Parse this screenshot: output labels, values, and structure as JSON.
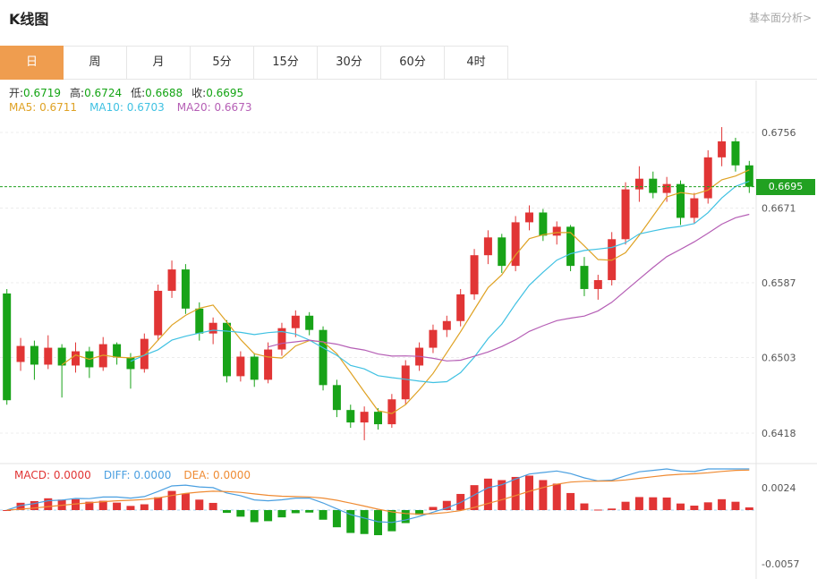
{
  "header": {
    "title": "K线图",
    "link": "基本面分析>"
  },
  "tabs": [
    {
      "label": "日"
    },
    {
      "label": "周"
    },
    {
      "label": "月"
    },
    {
      "label": "5分"
    },
    {
      "label": "15分"
    },
    {
      "label": "30分"
    },
    {
      "label": "60分"
    },
    {
      "label": "4时"
    }
  ],
  "ohlc": {
    "open_label": "开:",
    "open_value": "0.6719",
    "high_label": "高:",
    "high_value": "0.6724",
    "low_label": "低:",
    "low_value": "0.6688",
    "close_label": "收:",
    "close_value": "0.6695"
  },
  "ma": {
    "ma5_label": "MA5: ",
    "ma5_value": "0.6711",
    "ma10_label": "MA10: ",
    "ma10_value": "0.6703",
    "ma20_label": "MA20: ",
    "ma20_value": "0.6673"
  },
  "macd": {
    "macd_label": "MACD: ",
    "macd_value": "0.0000",
    "diff_label": "DIFF: ",
    "diff_value": "0.0000",
    "dea_label": "DEA: ",
    "dea_value": "0.0000"
  },
  "price_badge": "0.6695",
  "colors": {
    "up": "#e13535",
    "down": "#18a318",
    "current": "#21a121",
    "ma5": "#dfa224",
    "ma10": "#3fc1e2",
    "ma20": "#b55eb5",
    "diff": "#4a9fe0",
    "dea": "#ef8b33",
    "tab_active": "#ef9d4f"
  },
  "chart_data": {
    "type": "candlestick",
    "title": "K线图",
    "interval_selected": "日",
    "y_ticks": [
      0.6756,
      0.6671,
      0.6587,
      0.6503,
      0.6418
    ],
    "macd_ticks": [
      0.0024,
      -0.0057
    ],
    "current_price": 0.6695,
    "last_candle": {
      "open": 0.6719,
      "high": 0.6724,
      "low": 0.6688,
      "close": 0.6695
    },
    "overlays": [
      {
        "name": "MA5",
        "period": 5,
        "value": 0.6711
      },
      {
        "name": "MA10",
        "period": 10,
        "value": 0.6703
      },
      {
        "name": "MA20",
        "period": 20,
        "value": 0.6673
      }
    ],
    "indicator": "MACD",
    "candles": [
      [
        0.6575,
        0.658,
        0.645,
        0.6455
      ],
      [
        0.6498,
        0.6525,
        0.6488,
        0.6516
      ],
      [
        0.6516,
        0.6522,
        0.6478,
        0.6495
      ],
      [
        0.6495,
        0.6528,
        0.649,
        0.6514
      ],
      [
        0.6514,
        0.6518,
        0.6458,
        0.6494
      ],
      [
        0.6494,
        0.652,
        0.6486,
        0.651
      ],
      [
        0.651,
        0.6515,
        0.648,
        0.6492
      ],
      [
        0.6492,
        0.6526,
        0.6488,
        0.6518
      ],
      [
        0.6518,
        0.652,
        0.6495,
        0.6503
      ],
      [
        0.6503,
        0.6508,
        0.6468,
        0.649
      ],
      [
        0.649,
        0.653,
        0.6486,
        0.6524
      ],
      [
        0.6528,
        0.6585,
        0.6522,
        0.6578
      ],
      [
        0.6578,
        0.6612,
        0.657,
        0.6602
      ],
      [
        0.6602,
        0.6608,
        0.6552,
        0.6558
      ],
      [
        0.6558,
        0.6565,
        0.6522,
        0.653
      ],
      [
        0.653,
        0.6548,
        0.6518,
        0.6542
      ],
      [
        0.6542,
        0.6545,
        0.6475,
        0.6482
      ],
      [
        0.6482,
        0.651,
        0.6476,
        0.6504
      ],
      [
        0.6504,
        0.6508,
        0.647,
        0.6478
      ],
      [
        0.6478,
        0.652,
        0.6474,
        0.6512
      ],
      [
        0.6512,
        0.6542,
        0.6505,
        0.6536
      ],
      [
        0.6536,
        0.6556,
        0.6526,
        0.655
      ],
      [
        0.655,
        0.6554,
        0.6528,
        0.6534
      ],
      [
        0.6534,
        0.6538,
        0.6466,
        0.6472
      ],
      [
        0.6472,
        0.6478,
        0.6436,
        0.6444
      ],
      [
        0.6444,
        0.645,
        0.6424,
        0.643
      ],
      [
        0.643,
        0.6448,
        0.641,
        0.6442
      ],
      [
        0.6442,
        0.6446,
        0.6422,
        0.6428
      ],
      [
        0.6428,
        0.6462,
        0.6424,
        0.6456
      ],
      [
        0.6456,
        0.65,
        0.645,
        0.6494
      ],
      [
        0.6494,
        0.652,
        0.6488,
        0.6514
      ],
      [
        0.6514,
        0.654,
        0.6508,
        0.6534
      ],
      [
        0.6534,
        0.655,
        0.6526,
        0.6544
      ],
      [
        0.6544,
        0.658,
        0.6538,
        0.6574
      ],
      [
        0.6574,
        0.6625,
        0.6568,
        0.6618
      ],
      [
        0.6618,
        0.6646,
        0.6608,
        0.6638
      ],
      [
        0.6638,
        0.6642,
        0.6598,
        0.6606
      ],
      [
        0.6606,
        0.6662,
        0.66,
        0.6655
      ],
      [
        0.6655,
        0.6674,
        0.6646,
        0.6666
      ],
      [
        0.6666,
        0.667,
        0.6634,
        0.664
      ],
      [
        0.664,
        0.6656,
        0.663,
        0.665
      ],
      [
        0.665,
        0.6652,
        0.66,
        0.6606
      ],
      [
        0.6606,
        0.6616,
        0.6572,
        0.658
      ],
      [
        0.658,
        0.6596,
        0.6568,
        0.659
      ],
      [
        0.659,
        0.6644,
        0.6584,
        0.6636
      ],
      [
        0.6636,
        0.67,
        0.663,
        0.6692
      ],
      [
        0.6692,
        0.6718,
        0.6678,
        0.6704
      ],
      [
        0.6704,
        0.6712,
        0.6682,
        0.6688
      ],
      [
        0.6688,
        0.6706,
        0.6678,
        0.6698
      ],
      [
        0.6698,
        0.6702,
        0.6652,
        0.666
      ],
      [
        0.666,
        0.6688,
        0.6654,
        0.6682
      ],
      [
        0.6682,
        0.6736,
        0.6676,
        0.6728
      ],
      [
        0.6728,
        0.6762,
        0.6718,
        0.6746
      ],
      [
        0.6746,
        0.675,
        0.6712,
        0.6719
      ],
      [
        0.6719,
        0.6724,
        0.6688,
        0.6695
      ]
    ]
  }
}
